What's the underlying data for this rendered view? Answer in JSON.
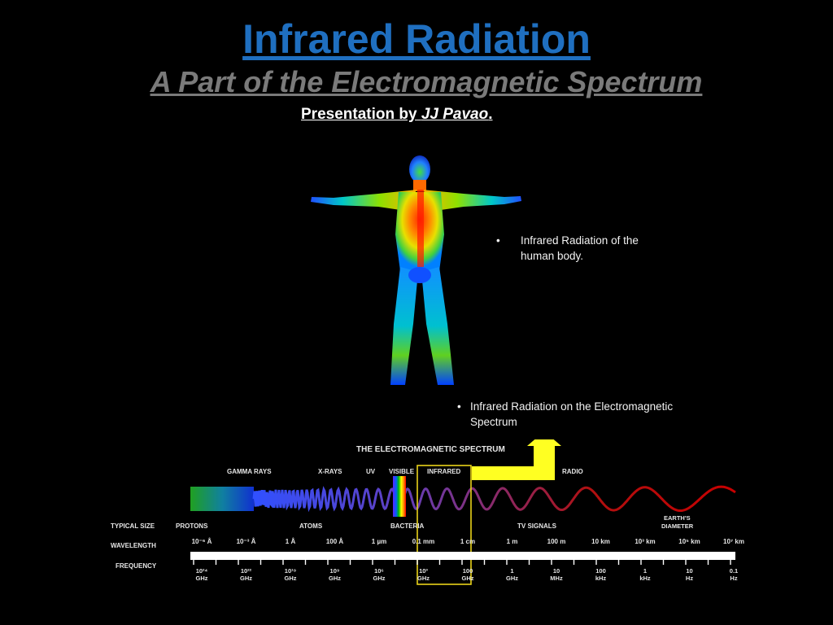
{
  "slide": {
    "title": "Infrared Radiation",
    "subtitle": "A Part of the Electromagnetic Spectrum",
    "byline_prefix": "Presentation by ",
    "byline_author": "JJ Pavao",
    "byline_suffix": "."
  },
  "bullets": [
    {
      "marker": "•",
      "text": "Infrared Radiation of the human body."
    },
    {
      "marker": "•",
      "text": "Infrared Radiation on the Electromagnetic Spectrum"
    }
  ],
  "spectrum": {
    "heading": "THE ELECTROMAGNETIC SPECTRUM",
    "bands": [
      "GAMMA RAYS",
      "X-RAYS",
      "UV",
      "VISIBLE",
      "INFRARED",
      "RADIO"
    ],
    "row_labels": [
      "TYPICAL SIZE",
      "WAVELENGTH",
      "FREQUENCY"
    ],
    "sizes": [
      "PROTONS",
      "ATOMS",
      "BACTERIA",
      "TV SIGNALS",
      "EARTH'S",
      "DIAMETER"
    ],
    "wavelengths": [
      "10⁻⁶ Å",
      "10⁻³ Å",
      "1 Å",
      "100 Å",
      "1 µm",
      "0.1 mm",
      "1 cm",
      "1 m",
      "100 m",
      "10 km",
      "10³ km",
      "10⁵ km",
      "10⁷ km"
    ],
    "frequency_values": [
      "10²⁴",
      "10²²",
      "10¹⁹",
      "10⁹",
      "10⁶",
      "10³",
      "100",
      "1",
      "10",
      "100",
      "1",
      "10",
      "0.1"
    ],
    "frequency_units": [
      "GHz",
      "GHz",
      "GHz",
      "GHz",
      "GHz",
      "GHz",
      "GHz",
      "GHz",
      "MHz",
      "kHz",
      "kHz",
      "Hz",
      "Hz"
    ],
    "highlight_color": "#e8d21a",
    "arrow_color": "#ffff22"
  }
}
